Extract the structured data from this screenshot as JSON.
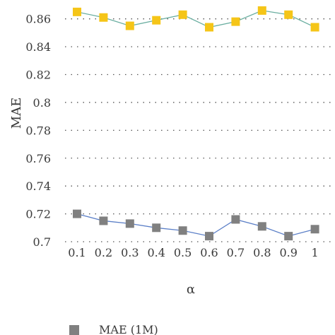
{
  "chart_data": {
    "type": "line",
    "xlabel": "α",
    "ylabel": "MAE",
    "ylim": [
      0.7,
      0.87
    ],
    "y_ticks": [
      "0.7",
      "0.72",
      "0.74",
      "0.76",
      "0.78",
      "0.8",
      "0.82",
      "0.84",
      "0.86"
    ],
    "categories": [
      "0.1",
      "0.2",
      "0.3",
      "0.4",
      "0.5",
      "0.6",
      "0.7",
      "0.8",
      "0.9",
      "1"
    ],
    "grid": "horizontal dotted",
    "legend_position": "bottom",
    "series": [
      {
        "color": "#f5c518",
        "line_color": "#6aaea0",
        "marker": "square",
        "values": [
          0.865,
          0.861,
          0.855,
          0.859,
          0.863,
          0.854,
          0.858,
          0.866,
          0.863,
          0.854
        ]
      },
      {
        "name": "MAE (1M)",
        "color": "#808080",
        "line_color": "#5b7fc7",
        "marker": "square",
        "values": [
          0.72,
          0.715,
          0.713,
          0.71,
          0.708,
          0.704,
          0.716,
          0.711,
          0.704,
          0.709
        ]
      }
    ]
  }
}
